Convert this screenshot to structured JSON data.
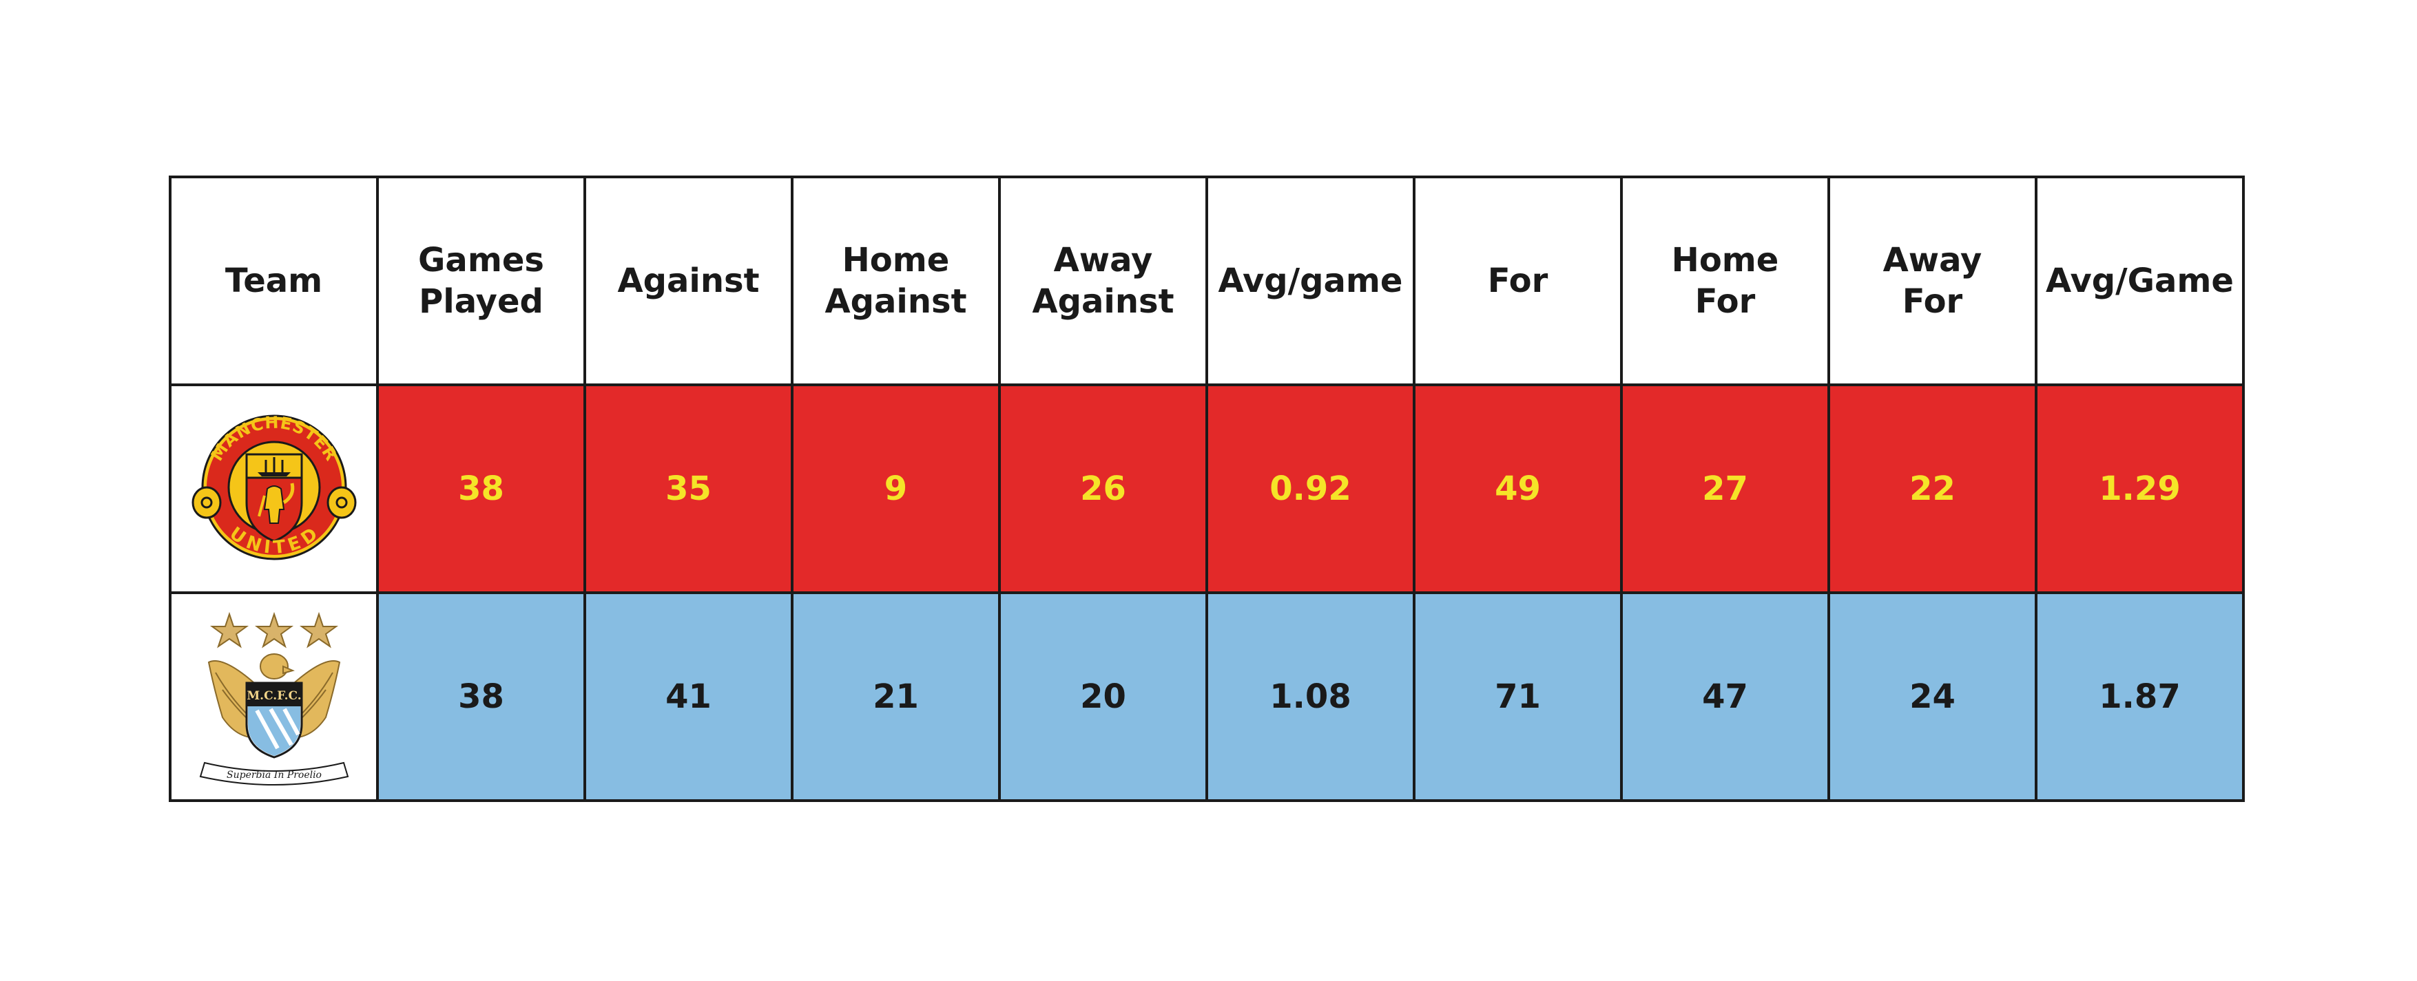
{
  "colors": {
    "united_fill": "#e32929",
    "united_text": "#f5e428",
    "city_fill": "#87bde2",
    "city_text": "#1a1a1a",
    "border": "#1a1a1a"
  },
  "chart_data": {
    "type": "table",
    "columns": [
      "Team",
      "Games\nPlayed",
      "Against",
      "Home\nAgainst",
      "Away\nAgainst",
      "Avg/game",
      "For",
      "Home\nFor",
      "Away\nFor",
      "Avg/Game"
    ],
    "rows": [
      {
        "team_crest": "manchester-united-crest",
        "crest_text_top": "MANCHESTER",
        "crest_text_bottom": "UNITED",
        "values": [
          "38",
          "35",
          "9",
          "26",
          "0.92",
          "49",
          "27",
          "22",
          "1.29"
        ]
      },
      {
        "team_crest": "manchester-city-crest",
        "crest_text_shield": "M.C.F.C.",
        "crest_text_motto": "Superbia In Proelio",
        "values": [
          "38",
          "41",
          "21",
          "20",
          "1.08",
          "71",
          "47",
          "24",
          "1.87"
        ]
      }
    ]
  }
}
